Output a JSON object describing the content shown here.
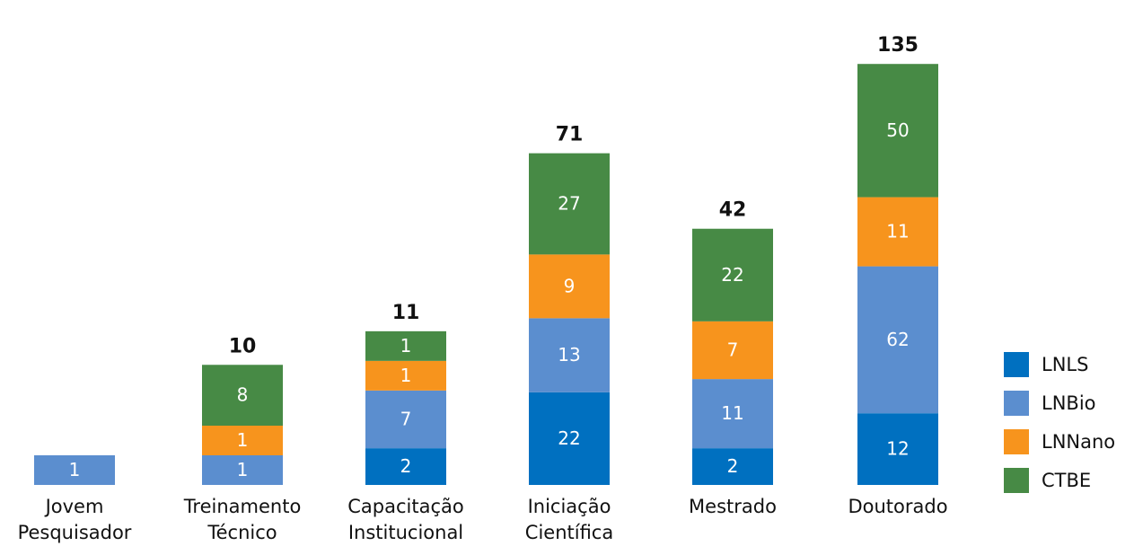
{
  "chart_data": {
    "type": "stacked-bar",
    "categories": [
      "Jovem Pesquisador",
      "Treinamento Técnico",
      "Capacitação Institucional",
      "Iniciação Científica",
      "Mestrado",
      "Doutorado"
    ],
    "series": [
      {
        "name": "LNLS",
        "color": "#0070c0",
        "values": [
          null,
          null,
          2,
          22,
          2,
          12
        ]
      },
      {
        "name": "LNBio",
        "color": "#5b8ecf",
        "values": [
          1,
          1,
          7,
          13,
          11,
          62
        ]
      },
      {
        "name": "LNNano",
        "color": "#f7941d",
        "values": [
          null,
          1,
          1,
          9,
          7,
          11
        ]
      },
      {
        "name": "CTBE",
        "color": "#478a45",
        "values": [
          null,
          8,
          1,
          27,
          22,
          50
        ]
      }
    ],
    "totals": [
      null,
      10,
      11,
      71,
      42,
      135
    ],
    "legend": "right"
  }
}
